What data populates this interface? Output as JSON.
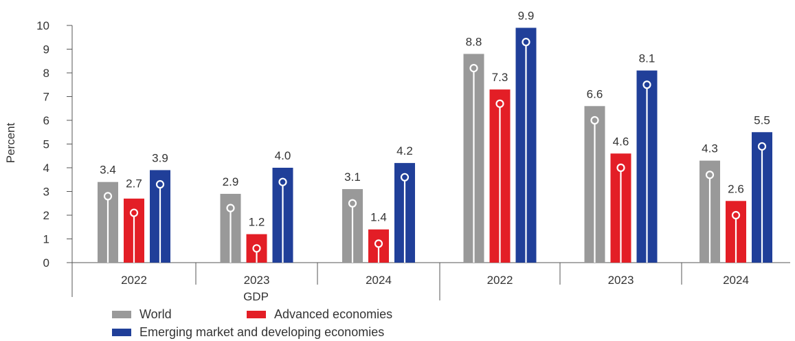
{
  "chart_data": {
    "type": "bar",
    "ylabel": "Percent",
    "ylim": [
      0,
      10
    ],
    "yticks": [
      "0",
      "1",
      "2",
      "3",
      "4",
      "5",
      "6",
      "7",
      "8",
      "9",
      "10"
    ],
    "groups": [
      {
        "label": "2022"
      },
      {
        "label": "2023"
      },
      {
        "label": "2024"
      },
      {
        "label": "2022"
      },
      {
        "label": "2023"
      },
      {
        "label": "2024"
      }
    ],
    "group_block_label": "GDP",
    "series": [
      {
        "name": "World",
        "color": "#999999",
        "values": [
          3.4,
          2.9,
          3.1,
          8.8,
          6.6,
          4.3
        ],
        "labels": [
          "3.4",
          "2.9",
          "3.1",
          "8.8",
          "6.6",
          "4.3"
        ],
        "markers": [
          2.8,
          2.3,
          2.5,
          8.2,
          6.0,
          3.7
        ]
      },
      {
        "name": "Advanced economies",
        "color": "#e31e26",
        "values": [
          2.7,
          1.2,
          1.4,
          7.3,
          4.6,
          2.6
        ],
        "labels": [
          "",
          "1.2",
          "1.4",
          "7.3",
          "4.6",
          "2.6"
        ],
        "markers": [
          2.1,
          0.6,
          0.8,
          6.7,
          4.0,
          2.0
        ]
      },
      {
        "name": "Emerging market and developing economies",
        "color": "#203f99",
        "values": [
          3.9,
          4.0,
          4.2,
          9.9,
          8.1,
          5.5
        ],
        "labels": [
          "3.9",
          "4.0",
          "4.2",
          "9.9",
          "8.1",
          "5.5"
        ],
        "markers": [
          3.3,
          3.4,
          3.6,
          9.3,
          7.5,
          4.9
        ]
      }
    ],
    "extra_labels": [
      {
        "text": "2.7"
      }
    ],
    "legend_position": "bottom-left",
    "grid": false
  }
}
